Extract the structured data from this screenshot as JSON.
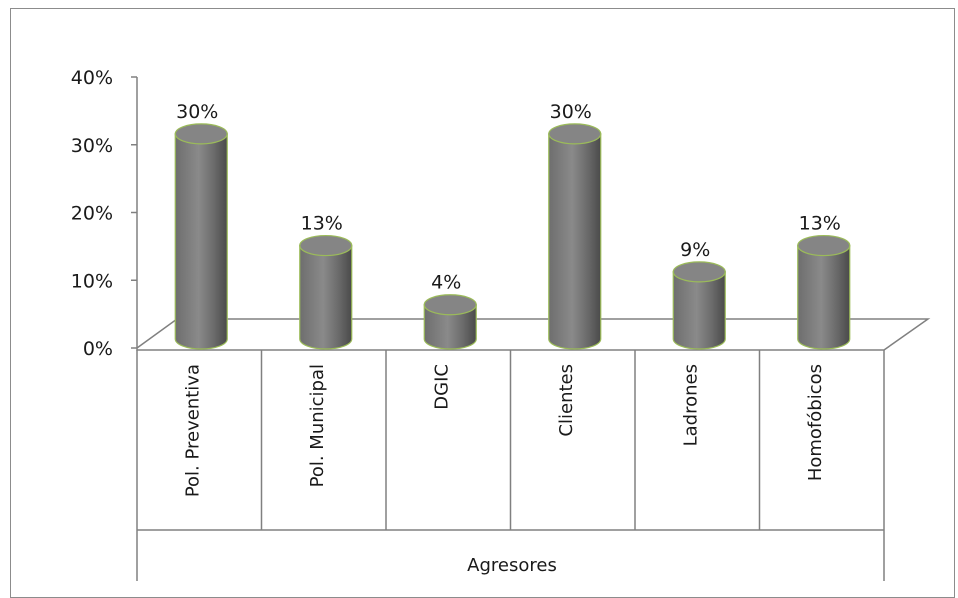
{
  "chart_data": {
    "type": "bar",
    "style": "3d-cylinder",
    "categories": [
      "Pol. Preventiva",
      "Pol. Municipal",
      "DGIC",
      "Clientes",
      "Ladrones",
      "Homofóbicos"
    ],
    "values": [
      30,
      13,
      4,
      30,
      9,
      13
    ],
    "data_labels": [
      "30%",
      "13%",
      "4%",
      "30%",
      "9%",
      "13%"
    ],
    "y_ticks": [
      "0%",
      "10%",
      "20%",
      "30%",
      "40%"
    ],
    "ylim": [
      0,
      40
    ],
    "xlabel": "Agresores",
    "ylabel": "",
    "title": "",
    "grid": false,
    "legend": "none",
    "colors": {
      "bar": "#7f7f7f",
      "bar_outline": "#9bbb59",
      "axis": "#808080",
      "text": "#1a1a1a"
    }
  }
}
